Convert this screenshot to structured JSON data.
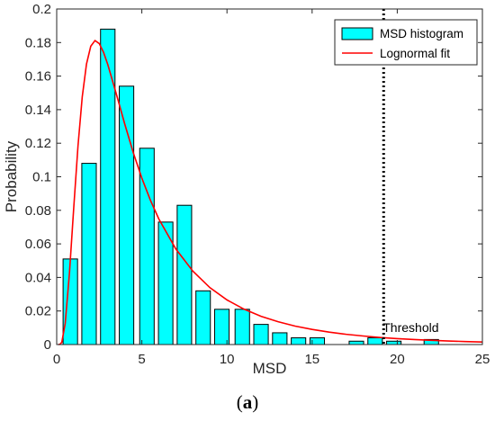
{
  "chart_data": {
    "type": "bar",
    "xlabel": "MSD",
    "ylabel": "Probability",
    "xlim": [
      0,
      25
    ],
    "ylim": [
      0,
      0.2
    ],
    "x_ticks": [
      0,
      5,
      10,
      15,
      20,
      25
    ],
    "y_ticks": [
      0,
      0.02,
      0.04,
      0.06,
      0.08,
      0.1,
      0.12,
      0.14,
      0.16,
      0.18,
      0.2
    ],
    "grid": false,
    "legend_position": "top-right",
    "series": [
      {
        "name": "MSD histogram",
        "kind": "bar",
        "color": "#00FFFF",
        "bar_width": 0.85,
        "x": [
          0.8,
          1.9,
          3.0,
          4.1,
          5.3,
          6.4,
          7.5,
          8.6,
          9.7,
          10.9,
          12.0,
          13.1,
          14.2,
          15.3,
          17.6,
          18.7,
          19.8,
          22.0
        ],
        "values": [
          0.051,
          0.108,
          0.188,
          0.154,
          0.117,
          0.073,
          0.083,
          0.032,
          0.021,
          0.021,
          0.012,
          0.007,
          0.004,
          0.004,
          0.002,
          0.004,
          0.002,
          0.003
        ]
      },
      {
        "name": "Lognormal fit",
        "kind": "line",
        "color": "#FF0000",
        "x": [
          0.1,
          0.2,
          0.3,
          0.5,
          0.75,
          1.0,
          1.25,
          1.5,
          1.75,
          2.0,
          2.25,
          2.5,
          2.75,
          3.0,
          3.5,
          4.0,
          4.5,
          5.0,
          5.5,
          6.0,
          7.0,
          8.0,
          9.0,
          10.0,
          11.0,
          12.0,
          13.0,
          14.0,
          15.0,
          16.0,
          17.0,
          18.0,
          19.0,
          20.0,
          21.0,
          22.0,
          23.0,
          24.0,
          25.0
        ],
        "y": [
          0.0,
          0.0002,
          0.0014,
          0.0126,
          0.0427,
          0.0814,
          0.1183,
          0.1476,
          0.1672,
          0.1778,
          0.1812,
          0.1794,
          0.1742,
          0.1669,
          0.1494,
          0.1313,
          0.1143,
          0.0992,
          0.0861,
          0.0748,
          0.0569,
          0.0437,
          0.0339,
          0.0266,
          0.0211,
          0.0168,
          0.0136,
          0.011,
          0.009,
          0.0074,
          0.0061,
          0.0051,
          0.0042,
          0.0035,
          0.003,
          0.0025,
          0.0021,
          0.0018,
          0.0015
        ]
      }
    ],
    "threshold": {
      "x": 19.2,
      "label": "Threshold",
      "style": "dotted",
      "color": "#000000"
    }
  },
  "caption": {
    "open": "(",
    "letter": "a",
    "close": ")"
  }
}
